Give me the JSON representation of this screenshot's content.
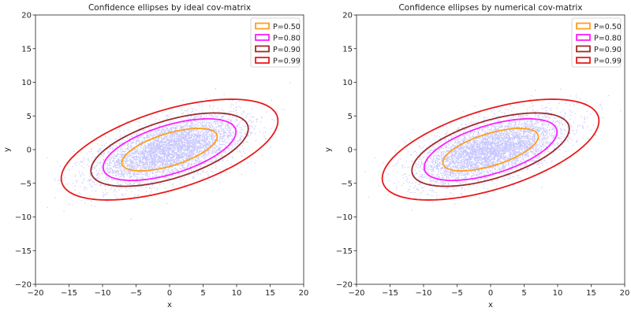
{
  "chart_data": [
    {
      "type": "scatter",
      "title": "Confidence ellipses by ideal cov-matrix",
      "xlabel": "x",
      "ylabel": "y",
      "xlim": [
        -20,
        20
      ],
      "ylim": [
        -20,
        20
      ],
      "xticks": [
        -20,
        -15,
        -10,
        -5,
        0,
        5,
        10,
        15,
        20
      ],
      "yticks": [
        -20,
        -15,
        -10,
        -5,
        0,
        5,
        10,
        15,
        20
      ],
      "grid": false,
      "legend_position": "top-right",
      "scatter_color": "#0000ff",
      "ellipses": [
        {
          "name": "P=0.50",
          "color": "#ff9f1c",
          "center": [
            0,
            0
          ],
          "semi_major": 7.4,
          "semi_minor": 2.4,
          "angle_deg": 17
        },
        {
          "name": "P=0.80",
          "color": "#ff1fff",
          "center": [
            0,
            0
          ],
          "semi_major": 10.3,
          "semi_minor": 3.6,
          "angle_deg": 17
        },
        {
          "name": "P=0.90",
          "color": "#9e2b2b",
          "center": [
            0,
            0
          ],
          "semi_major": 12.2,
          "semi_minor": 4.3,
          "angle_deg": 17
        },
        {
          "name": "P=0.99",
          "color": "#e81b1b",
          "center": [
            0,
            0
          ],
          "semi_major": 16.8,
          "semi_minor": 5.9,
          "angle_deg": 17
        }
      ]
    },
    {
      "type": "scatter",
      "title": "Confidence ellipses by numerical cov-matrix",
      "xlabel": "x",
      "ylabel": "y",
      "xlim": [
        -20,
        20
      ],
      "ylim": [
        -20,
        20
      ],
      "xticks": [
        -20,
        -15,
        -10,
        -5,
        0,
        5,
        10,
        15,
        20
      ],
      "yticks": [
        -20,
        -15,
        -10,
        -5,
        0,
        5,
        10,
        15,
        20
      ],
      "grid": false,
      "legend_position": "top-right",
      "scatter_color": "#0000ff",
      "ellipses": [
        {
          "name": "P=0.50",
          "color": "#ff9f1c",
          "center": [
            0,
            0
          ],
          "semi_major": 7.4,
          "semi_minor": 2.4,
          "angle_deg": 17
        },
        {
          "name": "P=0.80",
          "color": "#ff1fff",
          "center": [
            0,
            0
          ],
          "semi_major": 10.3,
          "semi_minor": 3.6,
          "angle_deg": 17
        },
        {
          "name": "P=0.90",
          "color": "#9e2b2b",
          "center": [
            0,
            0
          ],
          "semi_major": 12.2,
          "semi_minor": 4.3,
          "angle_deg": 17
        },
        {
          "name": "P=0.99",
          "color": "#e81b1b",
          "center": [
            0,
            0
          ],
          "semi_major": 16.8,
          "semi_minor": 5.9,
          "angle_deg": 17
        }
      ]
    }
  ]
}
